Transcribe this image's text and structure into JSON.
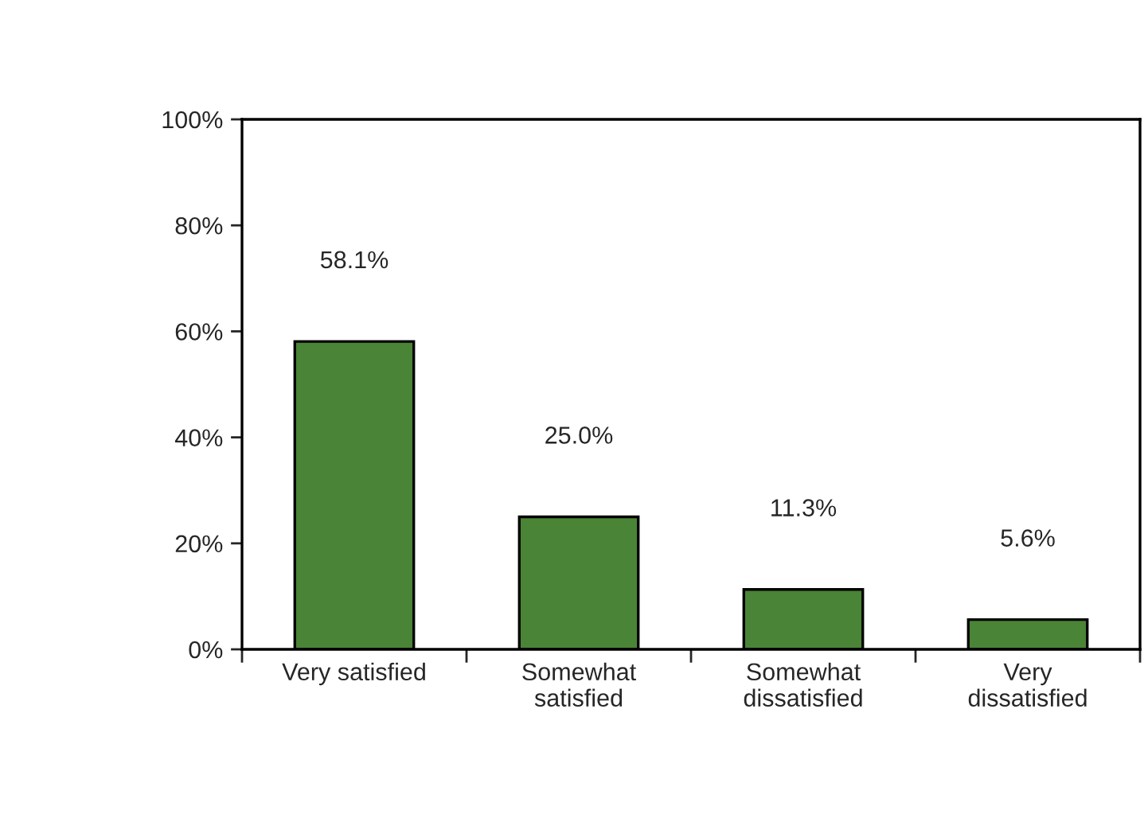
{
  "chart_data": {
    "type": "bar",
    "categories": [
      "Very satisfied",
      "Somewhat\nsatisfied",
      "Somewhat\ndissatisfied",
      "Very\ndissatisfied"
    ],
    "values": [
      58.1,
      25.0,
      11.3,
      5.6
    ],
    "color": "#4a8436",
    "value_labels": [
      "58.1%",
      "25.0%",
      "11.3%",
      "5.6%"
    ],
    "ylim": [
      0,
      100
    ],
    "yticks": [
      {
        "value": 0,
        "label": "0%"
      },
      {
        "value": 20,
        "label": "20%"
      },
      {
        "value": 40,
        "label": "40%"
      },
      {
        "value": 60,
        "label": "60%"
      },
      {
        "value": 80,
        "label": "80%"
      },
      {
        "value": 100,
        "label": "100%"
      }
    ],
    "grid": false,
    "legend": false
  }
}
